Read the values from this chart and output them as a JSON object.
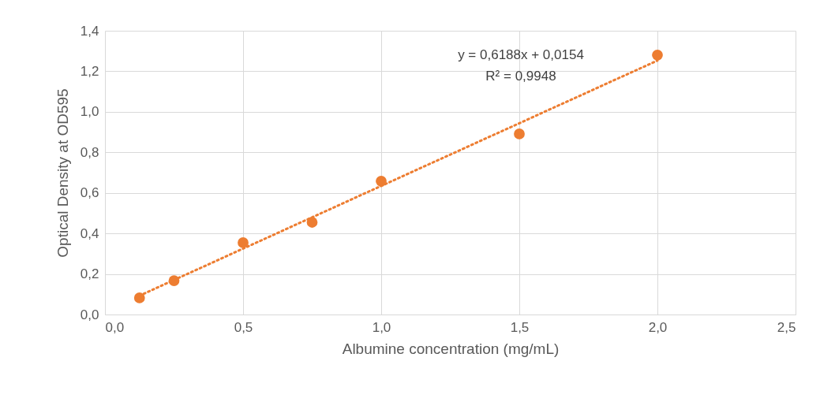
{
  "chart_data": {
    "type": "scatter",
    "xlabel": "Albumine concentration (mg/mL)",
    "ylabel": "Optical Density  at OD595",
    "x": [
      0.125,
      0.25,
      0.5,
      0.75,
      1.0,
      1.5,
      2.0
    ],
    "series": [
      {
        "color": "#ed7d31",
        "marker": "circle",
        "values": [
          0.082,
          0.167,
          0.354,
          0.455,
          0.658,
          0.891,
          1.28
        ]
      },
      {
        "type": "line",
        "color": "#ed7d31",
        "line_style": "dotted",
        "x": [
          0.125,
          2.0
        ],
        "values": [
          0.093,
          1.253
        ]
      }
    ],
    "xlim": [
      0,
      2.5
    ],
    "xticks": [
      {
        "value": 0,
        "label": "0,0"
      },
      {
        "value": 0.5,
        "label": "0,5"
      },
      {
        "value": 1,
        "label": "1,0"
      },
      {
        "value": 1.5,
        "label": "1,5"
      },
      {
        "value": 2,
        "label": "2,0"
      },
      {
        "value": 2.5,
        "label": "2,5"
      }
    ],
    "ylim": [
      0,
      1.4
    ],
    "yticks": [
      {
        "value": 0,
        "label": "0,0"
      },
      {
        "value": 0.2,
        "label": "0,2"
      },
      {
        "value": 0.4,
        "label": "0,4"
      },
      {
        "value": 0.6,
        "label": "0,6"
      },
      {
        "value": 0.8,
        "label": "0,8"
      },
      {
        "value": 1,
        "label": "1,0"
      },
      {
        "value": 1.2,
        "label": "1,2"
      },
      {
        "value": 1.4,
        "label": "1,4"
      }
    ],
    "grid": true,
    "annotations": [
      "y = 0,6188x + 0,0154",
      "R² = 0,9948"
    ]
  }
}
